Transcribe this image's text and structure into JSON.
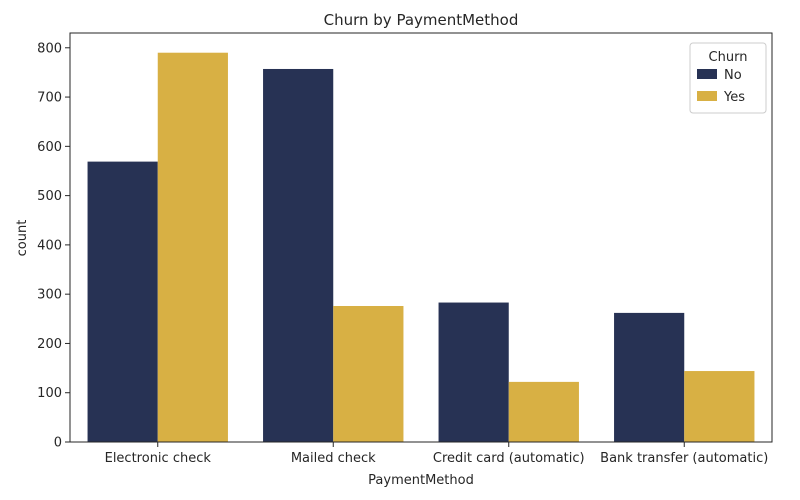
{
  "chart_data": {
    "type": "bar",
    "title": "Churn by PaymentMethod",
    "xlabel": "PaymentMethod",
    "ylabel": "count",
    "categories": [
      "Electronic check",
      "Mailed check",
      "Credit card (automatic)",
      "Bank transfer (automatic)"
    ],
    "series": [
      {
        "name": "No",
        "color": "#273254",
        "values": [
          569,
          757,
          283,
          262
        ]
      },
      {
        "name": "Yes",
        "color": "#d8b044",
        "values": [
          790,
          276,
          122,
          144
        ]
      }
    ],
    "ylim": [
      0,
      830
    ],
    "yticks": [
      0,
      100,
      200,
      300,
      400,
      500,
      600,
      700,
      800
    ],
    "legend": {
      "title": "Churn",
      "position": "top-right"
    },
    "grid": false
  }
}
